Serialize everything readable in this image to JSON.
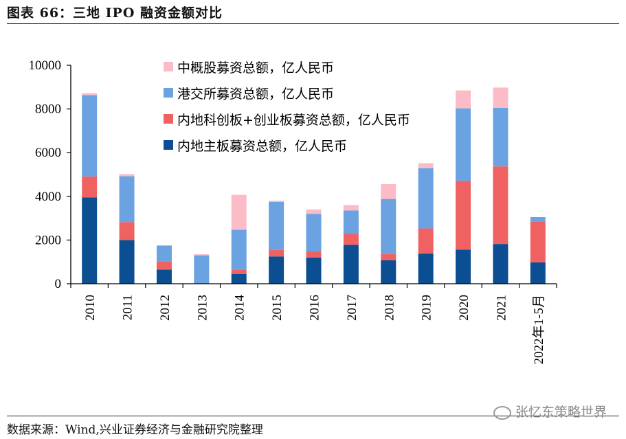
{
  "header": {
    "title": "图表 66：三地 IPO 融资金额对比"
  },
  "footer": {
    "source": "数据来源：Wind,兴业证券经济与金融研究院整理"
  },
  "watermark": {
    "text": "张忆东策略世界"
  },
  "colors": {
    "mainboard": "#0b4e92",
    "star_gem": "#f06262",
    "hkex": "#6aa2e2",
    "china_concept": "#fbbcc8",
    "axis": "#000000"
  },
  "chart_data": {
    "type": "bar",
    "stacked": true,
    "title": "三地 IPO 融资金额对比",
    "xlabel": "",
    "ylabel": "",
    "ylim": [
      0,
      10000
    ],
    "yticks": [
      0,
      2000,
      4000,
      6000,
      8000,
      10000
    ],
    "grid": false,
    "legend_position": "top-center",
    "categories": [
      "2010",
      "2011",
      "2012",
      "2013",
      "2014",
      "2015",
      "2016",
      "2017",
      "2018",
      "2019",
      "2020",
      "2021",
      "2022年1-5月"
    ],
    "series": [
      {
        "name": "内地主板募资总额，亿人民币",
        "key": "mainboard",
        "values": [
          3950,
          2000,
          650,
          0,
          450,
          1250,
          1200,
          1780,
          1080,
          1380,
          1560,
          1820,
          980
        ]
      },
      {
        "name": "内地科创板+创业板募资总额，亿人民币",
        "key": "star_gem",
        "values": [
          960,
          820,
          380,
          0,
          200,
          300,
          280,
          500,
          280,
          1150,
          3150,
          3550,
          1870
        ]
      },
      {
        "name": "港交所募资总额，亿人民币",
        "key": "hkex",
        "values": [
          3720,
          2100,
          720,
          1300,
          1820,
          2200,
          1720,
          1070,
          2520,
          2760,
          3320,
          2680,
          200
        ]
      },
      {
        "name": "中概股募资总额，亿人民币",
        "key": "china_concept",
        "values": [
          90,
          100,
          0,
          50,
          1600,
          50,
          200,
          250,
          680,
          230,
          820,
          930,
          0
        ]
      }
    ],
    "legend_order": [
      "china_concept",
      "hkex",
      "star_gem",
      "mainboard"
    ]
  }
}
